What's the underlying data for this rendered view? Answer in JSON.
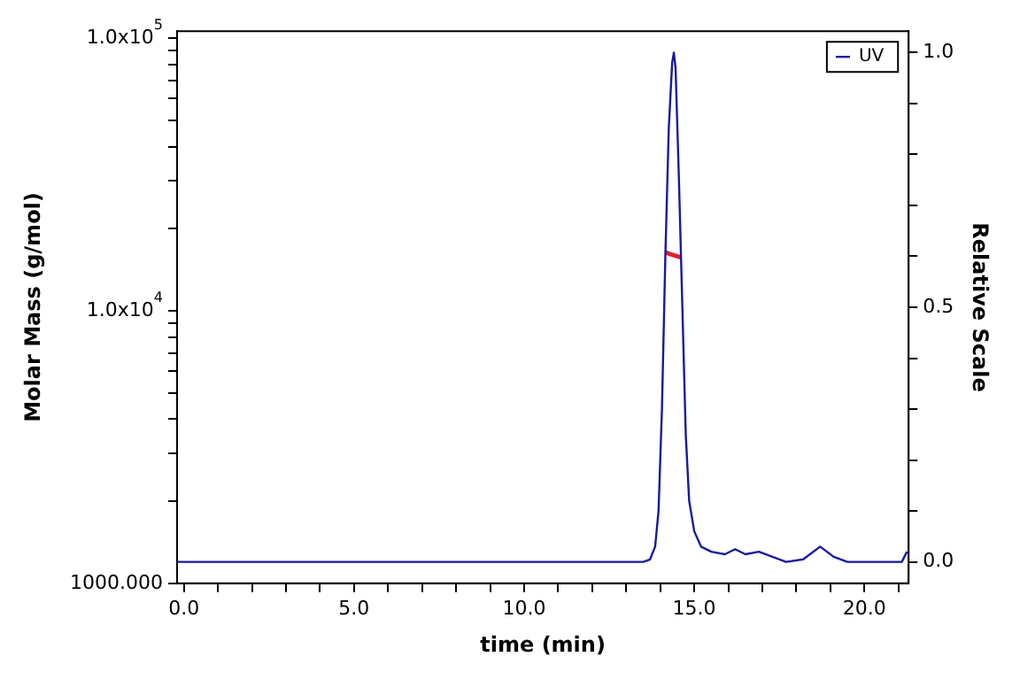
{
  "chart_data": {
    "type": "line",
    "xlabel": "time (min)",
    "ylabel": "Molar Mass (g/mol)",
    "y2label": "Relative Scale",
    "log": "y",
    "grid": false,
    "legend": "top right",
    "marker": "none",
    "line_style": "solid",
    "xlim": [
      -0.2,
      21.3
    ],
    "xticks": [
      {
        "value": 0,
        "label": "0.0"
      },
      {
        "value": 1,
        "label": null
      },
      {
        "value": 2,
        "label": null
      },
      {
        "value": 3,
        "label": null
      },
      {
        "value": 4,
        "label": null
      },
      {
        "value": 5,
        "label": "5.0"
      },
      {
        "value": 6,
        "label": null
      },
      {
        "value": 7,
        "label": null
      },
      {
        "value": 8,
        "label": null
      },
      {
        "value": 9,
        "label": null
      },
      {
        "value": 10,
        "label": "10.0"
      },
      {
        "value": 11,
        "label": null
      },
      {
        "value": 12,
        "label": null
      },
      {
        "value": 13,
        "label": null
      },
      {
        "value": 14,
        "label": null
      },
      {
        "value": 15,
        "label": "15.0"
      },
      {
        "value": 16,
        "label": null
      },
      {
        "value": 17,
        "label": null
      },
      {
        "value": 18,
        "label": null
      },
      {
        "value": 19,
        "label": null
      },
      {
        "value": 20,
        "label": "20.0"
      },
      {
        "value": 21,
        "label": null
      }
    ],
    "ylim": [
      1000,
      106000
    ],
    "yticks": [
      {
        "value": 1000,
        "label": "1000.000"
      },
      {
        "value": 2000,
        "label": null
      },
      {
        "value": 3000,
        "label": null
      },
      {
        "value": 4000,
        "label": null
      },
      {
        "value": 5000,
        "label": null
      },
      {
        "value": 6000,
        "label": null
      },
      {
        "value": 7000,
        "label": null
      },
      {
        "value": 8000,
        "label": null
      },
      {
        "value": 9000,
        "label": null
      },
      {
        "value": 10000,
        "label": "1.0x10$^{4}$"
      },
      {
        "value": 20000,
        "label": null
      },
      {
        "value": 30000,
        "label": null
      },
      {
        "value": 40000,
        "label": null
      },
      {
        "value": 50000,
        "label": null
      },
      {
        "value": 60000,
        "label": null
      },
      {
        "value": 70000,
        "label": null
      },
      {
        "value": 80000,
        "label": null
      },
      {
        "value": 90000,
        "label": null
      },
      {
        "value": 100000,
        "label": "1.0x10$^{5}$"
      }
    ],
    "y2lim": [
      -0.042,
      1.042
    ],
    "y2ticks": [
      {
        "value": 0,
        "label": "0.0"
      },
      {
        "value": 0.1,
        "label": null
      },
      {
        "value": 0.2,
        "label": null
      },
      {
        "value": 0.3,
        "label": null
      },
      {
        "value": 0.4,
        "label": null
      },
      {
        "value": 0.5,
        "label": "0.5"
      },
      {
        "value": 0.6,
        "label": null
      },
      {
        "value": 0.7,
        "label": null
      },
      {
        "value": 0.8,
        "label": null
      },
      {
        "value": 0.9,
        "label": null
      },
      {
        "value": 1,
        "label": "1.0"
      }
    ],
    "series": [
      {
        "name": "UV",
        "color": "#1a1a9c",
        "axis": "y2",
        "x": [
          -0.2,
          13.5,
          13.7,
          13.85,
          13.95,
          14.05,
          14.15,
          14.25,
          14.35,
          14.4,
          14.45,
          14.55,
          14.65,
          14.75,
          14.85,
          15.0,
          15.2,
          15.5,
          15.9,
          16.2,
          16.5,
          16.9,
          17.3,
          17.7,
          18.2,
          18.7,
          19.1,
          19.5,
          21.1,
          21.25
        ],
        "values": [
          0,
          0,
          0.005,
          0.03,
          0.1,
          0.3,
          0.6,
          0.85,
          0.98,
          1.0,
          0.97,
          0.75,
          0.5,
          0.25,
          0.12,
          0.06,
          0.03,
          0.02,
          0.015,
          0.025,
          0.015,
          0.02,
          0.01,
          0,
          0.005,
          0.03,
          0.01,
          0,
          0,
          0.02
        ]
      },
      {
        "color": "#e0202a",
        "axis": "y",
        "x": [
          14.15,
          14.3,
          14.45,
          14.6
        ],
        "values": [
          16400,
          16100,
          15900,
          15700
        ]
      }
    ]
  }
}
